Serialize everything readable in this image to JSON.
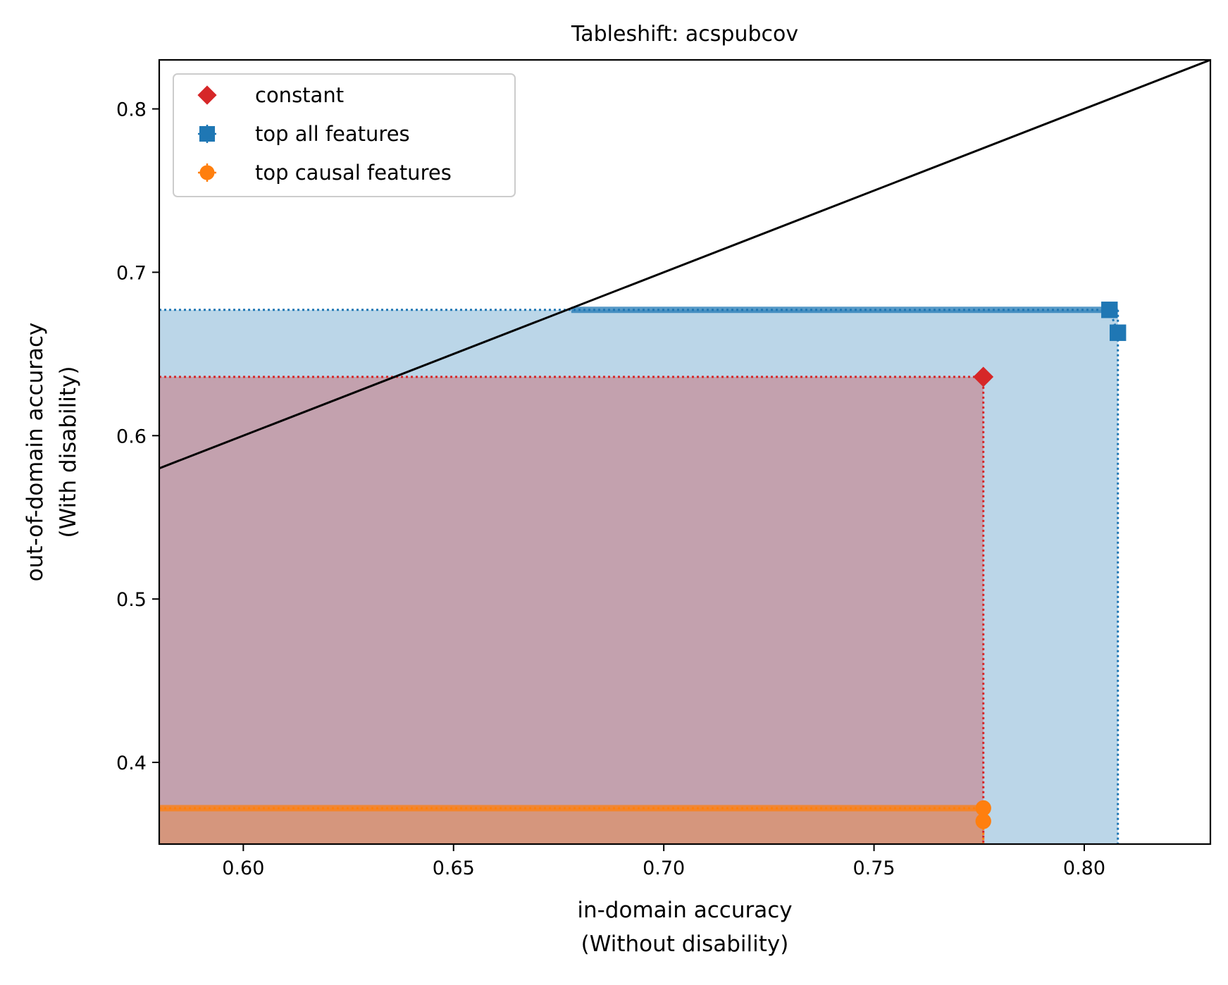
{
  "chart_data": {
    "type": "scatter",
    "title": "Tableshift: acspubcov",
    "xlabel": [
      "in-domain accuracy",
      "(Without disability)"
    ],
    "ylabel": [
      "out-of-domain accuracy",
      "(With disability)"
    ],
    "xlim": [
      0.58,
      0.83
    ],
    "ylim": [
      0.35,
      0.83
    ],
    "xticks": [
      0.6,
      0.65,
      0.7,
      0.75,
      0.8
    ],
    "xtick_labels": [
      "0.60",
      "0.65",
      "0.70",
      "0.75",
      "0.80"
    ],
    "yticks": [
      0.4,
      0.5,
      0.6,
      0.7,
      0.8
    ],
    "ytick_labels": [
      "0.4",
      "0.5",
      "0.6",
      "0.7",
      "0.8"
    ],
    "diagonal": {
      "x": [
        0.58,
        0.83
      ],
      "y": [
        0.58,
        0.83
      ],
      "color": "#000000"
    },
    "legend": {
      "position": "upper-left"
    },
    "series": [
      {
        "name": "constant",
        "marker": "diamond",
        "color": "#d62728",
        "points": [
          {
            "x": 0.776,
            "y": 0.636
          }
        ],
        "region": {
          "x_max": 0.776,
          "y_max": 0.636
        }
      },
      {
        "name": "top all features",
        "marker": "square",
        "color": "#1f77b4",
        "points": [
          {
            "x": 0.806,
            "y": 0.677
          },
          {
            "x": 0.808,
            "y": 0.663
          }
        ],
        "frontier": {
          "x": [
            0.678,
            0.806
          ],
          "y": [
            0.677,
            0.677
          ]
        },
        "region": {
          "x_max": 0.808,
          "y_max": 0.677
        }
      },
      {
        "name": "top causal features",
        "marker": "circle",
        "color": "#ff7f0e",
        "points": [
          {
            "x": 0.776,
            "y": 0.372
          },
          {
            "x": 0.776,
            "y": 0.364
          }
        ],
        "frontier": {
          "x": [
            0.58,
            0.776
          ],
          "y": [
            0.372,
            0.372
          ]
        },
        "region": {
          "x_max": 0.776,
          "y_max": 0.372
        }
      }
    ]
  }
}
